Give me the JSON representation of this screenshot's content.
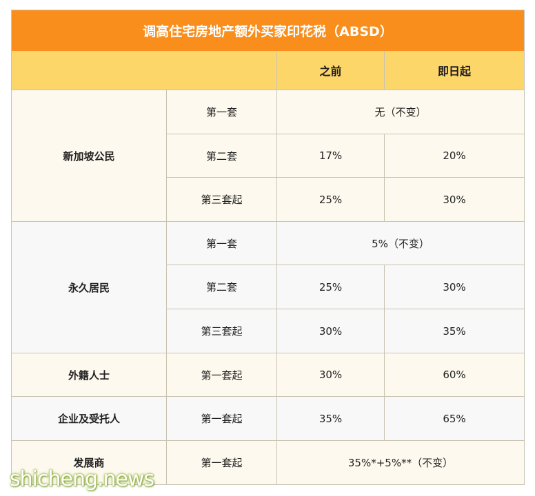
{
  "title": "调高住宅房地产额外买家印花税（ABSD）",
  "header": {
    "col1": "",
    "col2": "",
    "before": "之前",
    "from_today": "即日起"
  },
  "groups": [
    {
      "name": "新加坡公民",
      "rows": [
        {
          "label": "第一套",
          "merged": "无（不变）"
        },
        {
          "label": "第二套",
          "before": "17%",
          "after": "20%"
        },
        {
          "label": "第三套起",
          "before": "25%",
          "after": "30%"
        }
      ]
    },
    {
      "name": "永久居民",
      "rows": [
        {
          "label": "第一套",
          "merged": "5%（不变）"
        },
        {
          "label": "第二套",
          "before": "25%",
          "after": "30%"
        },
        {
          "label": "第三套起",
          "before": "30%",
          "after": "35%"
        }
      ]
    },
    {
      "name": "外籍人士",
      "rows": [
        {
          "label": "第一套起",
          "before": "30%",
          "after": "60%"
        }
      ]
    },
    {
      "name": "企业及受托人",
      "rows": [
        {
          "label": "第一套起",
          "before": "35%",
          "after": "65%"
        }
      ]
    },
    {
      "name": "发展商",
      "rows": [
        {
          "label": "第一套起",
          "merged": "35%*+5%**（不变）"
        }
      ]
    }
  ],
  "watermark": "shicheng.news"
}
